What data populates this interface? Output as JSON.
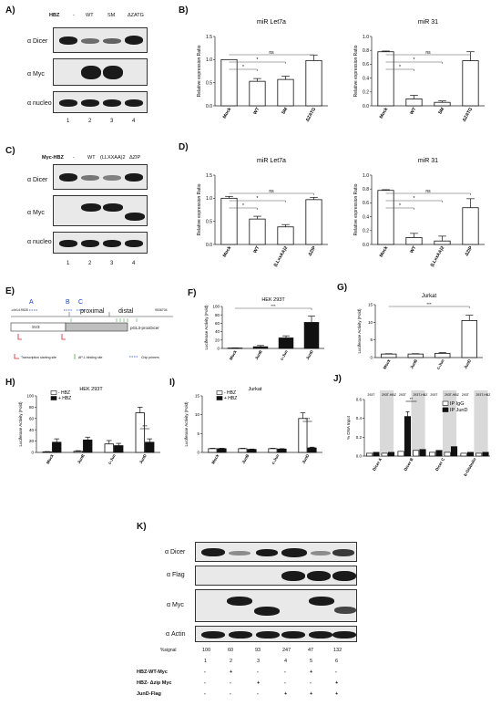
{
  "panels": {
    "A": {
      "label": "A)",
      "factor_label": "HBZ",
      "lanes": [
        "-",
        "WT",
        "SM",
        "ΔZATG"
      ],
      "rows": [
        "α Dicer",
        "α Myc",
        "α nucleo"
      ],
      "lane_numbers": [
        "1",
        "2",
        "3",
        "4"
      ]
    },
    "C": {
      "label": "C)",
      "factor_label": "Myc-HBZ",
      "lanes": [
        "-",
        "WT",
        "(LLXXAA)2",
        "ΔZIP"
      ],
      "rows": [
        "α Dicer",
        "α Myc",
        "α nucleo"
      ],
      "lane_numbers": [
        "1",
        "2",
        "3",
        "4"
      ]
    },
    "B": {
      "label": "B)"
    },
    "D": {
      "label": "D)"
    },
    "E": {
      "label": "E)",
      "site_a": "A",
      "site_b": "B",
      "site_c": "C",
      "region_proximal": "proximal",
      "region_distal": "distal",
      "construct": "pGL3-proxDicer",
      "left_box": "SV3",
      "coord_left": "-chr14:9528",
      "coord_right": "9536704",
      "legend_tss": "Transcription starting site",
      "legend_ap1": "AP-1 binding site",
      "legend_chip": "Chip primers"
    },
    "F": {
      "label": "F)"
    },
    "G": {
      "label": "G)"
    },
    "H": {
      "label": "H)"
    },
    "I": {
      "label": "I)"
    },
    "J": {
      "label": "J)"
    },
    "K": {
      "label": "K)",
      "rows": [
        "α Dicer",
        "α Flag",
        "α Myc",
        "α Actin"
      ],
      "signal_label": "%signal",
      "signal_values": [
        "100",
        "60",
        "93",
        "247",
        "47",
        "132"
      ],
      "lane_numbers": [
        "1",
        "2",
        "3",
        "4",
        "5",
        "6"
      ],
      "conditions": [
        {
          "name": "HBZ-WT-Myc",
          "marks": [
            "-",
            "+",
            "-",
            "-",
            "+",
            "-"
          ]
        },
        {
          "name": "HBZ- Δzip Myc",
          "marks": [
            "-",
            "-",
            "+",
            "-",
            "-",
            "+"
          ]
        },
        {
          "name": "JunD-Flag",
          "marks": [
            "-",
            "-",
            "-",
            "+",
            "+",
            "+"
          ]
        }
      ]
    }
  },
  "chart_data": [
    {
      "id": "B1",
      "type": "bar",
      "title": "miR Let7a",
      "ylabel": "Relative expression Ratio",
      "categories": [
        "Mock",
        "WT",
        "SM",
        "ΔZATG"
      ],
      "values": [
        1.0,
        0.53,
        0.57,
        0.98
      ],
      "errors": [
        0.0,
        0.06,
        0.07,
        0.12
      ],
      "ylim": [
        0,
        1.5
      ],
      "yticks": [
        "0.0",
        "0.5",
        "1.0",
        "1.5"
      ],
      "significance": [
        "*",
        "*",
        "ns"
      ]
    },
    {
      "id": "B2",
      "type": "bar",
      "title": "miR 31",
      "ylabel": "Relative expression Ratio",
      "categories": [
        "Mock",
        "WT",
        "SM",
        "ΔZATG"
      ],
      "values": [
        0.78,
        0.1,
        0.05,
        0.65
      ],
      "errors": [
        0.01,
        0.05,
        0.02,
        0.13
      ],
      "ylim": [
        0,
        1.0
      ],
      "yticks": [
        "0.0",
        "0.2",
        "0.4",
        "0.6",
        "0.8",
        "1.0"
      ],
      "significance": [
        "*",
        "*",
        "ns"
      ]
    },
    {
      "id": "D1",
      "type": "bar",
      "title": "miR Let7a",
      "ylabel": "Relative expression Ratio",
      "categories": [
        "Mock",
        "WT",
        "(LLxxAA)2",
        "ΔZIP"
      ],
      "values": [
        1.0,
        0.55,
        0.38,
        0.97
      ],
      "errors": [
        0.04,
        0.06,
        0.05,
        0.05
      ],
      "ylim": [
        0,
        1.5
      ],
      "yticks": [
        "0.0",
        "0.5",
        "1.0",
        "1.5"
      ],
      "significance": [
        "*",
        "*",
        "ns"
      ]
    },
    {
      "id": "D2",
      "type": "bar",
      "title": "miR 31",
      "ylabel": "Relative expression Ratio",
      "categories": [
        "Mock",
        "WT",
        "(LLxxAA)2",
        "ΔZIP"
      ],
      "values": [
        0.78,
        0.1,
        0.05,
        0.53
      ],
      "errors": [
        0.01,
        0.06,
        0.07,
        0.13
      ],
      "ylim": [
        0,
        1.0
      ],
      "yticks": [
        "0.0",
        "0.2",
        "0.4",
        "0.6",
        "0.8",
        "1.0"
      ],
      "significance": [
        "*",
        "*",
        "ns"
      ]
    },
    {
      "id": "F",
      "type": "bar",
      "title": "HEK 293T",
      "ylabel": "Luciferase Activity (Fold)",
      "categories": [
        "Mock",
        "JunB",
        "c-Jun",
        "JunD"
      ],
      "values": [
        1,
        4,
        25,
        62
      ],
      "errors": [
        0.5,
        3,
        5,
        15
      ],
      "ylim": [
        0,
        100
      ],
      "yticks": [
        "0",
        "20",
        "40",
        "60",
        "80",
        "100"
      ],
      "significance": [
        "***"
      ]
    },
    {
      "id": "G",
      "type": "bar",
      "title": "Jurkat",
      "ylabel": "Luciferase Activity (Fold)",
      "categories": [
        "Mock",
        "JunB",
        "c-Jun",
        "JunD"
      ],
      "values": [
        1,
        1,
        1.2,
        10.5
      ],
      "errors": [
        0.1,
        0.1,
        0.2,
        1.5
      ],
      "ylim": [
        0,
        15
      ],
      "yticks": [
        "0",
        "5",
        "10",
        "15"
      ],
      "significance": [
        "***"
      ]
    },
    {
      "id": "H",
      "type": "bar",
      "title": "HEK 293T",
      "ylabel": "Luciferase Activity (Fold)",
      "categories": [
        "Mock",
        "JunB",
        "c-Jun",
        "JunD"
      ],
      "series": [
        {
          "name": "- HBZ",
          "values": [
            1,
            2,
            15,
            70
          ],
          "errors": [
            0.5,
            1,
            6,
            10
          ],
          "color": "#ffffff"
        },
        {
          "name": "+ HBZ",
          "values": [
            18,
            22,
            12,
            18
          ],
          "errors": [
            6,
            5,
            4,
            6
          ],
          "color": "#111111"
        }
      ],
      "ylim": [
        0,
        100
      ],
      "yticks": [
        "0",
        "20",
        "40",
        "60",
        "80",
        "100"
      ],
      "significance": [
        "***"
      ]
    },
    {
      "id": "I",
      "type": "bar",
      "title": "Jurkat",
      "ylabel": "Luciferase Activity (Fold)",
      "categories": [
        "Mock",
        "JunB",
        "c-Jun",
        "JunD"
      ],
      "series": [
        {
          "name": "- HBZ",
          "values": [
            1,
            1,
            1,
            9
          ],
          "errors": [
            0.1,
            0.1,
            0.1,
            1.5
          ],
          "color": "#ffffff"
        },
        {
          "name": "+ HBZ",
          "values": [
            1,
            0.8,
            0.9,
            1.2
          ],
          "errors": [
            0.1,
            0.1,
            0.1,
            0.2
          ],
          "color": "#111111"
        }
      ],
      "ylim": [
        0,
        15
      ],
      "yticks": [
        "0",
        "5",
        "10",
        "15"
      ],
      "significance": [
        "***"
      ]
    },
    {
      "id": "J",
      "type": "bar",
      "ylabel": "% DNA Input",
      "categories": [
        "Dicer A",
        "Dicer B",
        "Dicer C",
        "b-Globulin"
      ],
      "series": [
        {
          "name": "IP IgG",
          "color": "#ffffff"
        },
        {
          "name": "IP JunD",
          "color": "#111111"
        }
      ],
      "conditions": [
        "293T",
        "293T-HBZ"
      ],
      "groups": [
        {
          "name": "Dicer A",
          "igg": [
            0.03,
            0.03
          ],
          "jund": [
            0.04,
            0.04
          ]
        },
        {
          "name": "Dicer B",
          "igg": [
            0.05,
            0.06
          ],
          "jund": [
            0.42,
            0.07
          ]
        },
        {
          "name": "Dicer C",
          "igg": [
            0.04,
            0.04
          ],
          "jund": [
            0.06,
            0.1
          ]
        },
        {
          "name": "b-Globulin",
          "igg": [
            0.03,
            0.03
          ],
          "jund": [
            0.04,
            0.04
          ]
        }
      ],
      "ylim": [
        0,
        0.6
      ],
      "yticks": [
        "0.0",
        "0.2",
        "0.4",
        "0.6"
      ],
      "significance": [
        "**"
      ]
    }
  ]
}
